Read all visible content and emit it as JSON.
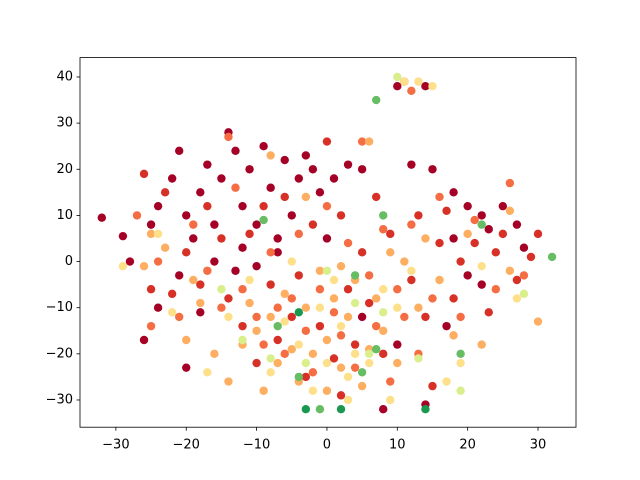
{
  "chart_data": {
    "type": "scatter",
    "xlim": [
      -35.1,
      35.4
    ],
    "ylim": [
      -35.9,
      44.2
    ],
    "xticks": [
      {
        "value": -30,
        "label": "−30"
      },
      {
        "value": -20,
        "label": "−20"
      },
      {
        "value": -10,
        "label": "−10"
      },
      0,
      10,
      20,
      30
    ],
    "yticks": [
      {
        "value": -30,
        "label": "−30"
      },
      {
        "value": -20,
        "label": "−20"
      },
      {
        "value": -10,
        "label": "−10"
      },
      0,
      10,
      20,
      30,
      40
    ],
    "grid": false,
    "series": [
      {
        "color": "#a50026",
        "x": [
          -32,
          -29,
          -26,
          -25,
          -24,
          -22,
          -21,
          -20,
          -19,
          -18,
          -17,
          -16,
          -15,
          -14,
          -13,
          -12,
          -12,
          -11,
          -10,
          -9,
          -8,
          -7,
          -6,
          -5,
          -4,
          -3,
          -2,
          -1,
          1,
          3,
          5,
          10,
          12,
          14,
          15,
          18,
          20,
          22,
          23,
          25,
          27,
          28,
          20,
          18,
          8,
          14,
          -24,
          -20,
          -18,
          -13,
          -10,
          -7,
          -16,
          5,
          10,
          17,
          22,
          -28,
          -21,
          0
        ],
        "values": [
          9.5,
          5.5,
          -17,
          8,
          12,
          18,
          24,
          10,
          5,
          15,
          21,
          8,
          18,
          28,
          24,
          12,
          3,
          20,
          8,
          25,
          16,
          2,
          22,
          10,
          18,
          23,
          20,
          15,
          18,
          21,
          20,
          38,
          21,
          38,
          20,
          15,
          12,
          10,
          7,
          12,
          8,
          3,
          -3,
          5,
          -32,
          -31,
          -10,
          -23,
          -11,
          -2,
          -1,
          5,
          0,
          -12,
          -18,
          -14,
          -5,
          0,
          -3,
          5
        ]
      },
      {
        "color": "#d73027",
        "x": [
          -26,
          -23,
          -22,
          -20,
          -18,
          -17,
          -15,
          -14,
          -12,
          -11,
          -10,
          -9,
          -8,
          -7,
          -6,
          -5,
          -4,
          -3,
          -2,
          -1,
          0,
          1,
          2,
          3,
          4,
          5,
          6,
          7,
          8,
          9,
          11,
          12,
          13,
          14,
          15,
          16,
          17,
          18,
          19,
          21,
          23,
          24,
          25,
          27,
          29,
          30,
          -25,
          2
        ],
        "values": [
          19,
          15,
          -7,
          2,
          -5,
          12,
          5,
          -8,
          -14,
          6,
          -22,
          12,
          -5,
          -17,
          14,
          -12,
          -3,
          -25,
          8,
          -14,
          26,
          -21,
          10,
          -6,
          -18,
          2,
          -9,
          14,
          -20,
          6,
          39,
          -4,
          10,
          -12,
          -27,
          4,
          11,
          -8,
          0,
          4,
          -11,
          2,
          6,
          -4,
          1,
          6,
          -6,
          -29
        ]
      },
      {
        "color": "#f46d43",
        "x": [
          -27,
          -24,
          -21,
          -19,
          -17,
          -15,
          -13,
          -12,
          -10,
          -9,
          -8,
          -7,
          -6,
          -5,
          -4,
          -3,
          -2,
          -1,
          0,
          1,
          2,
          3,
          4,
          6,
          7,
          8,
          9,
          10,
          11,
          12,
          13,
          15,
          16,
          19,
          21,
          24,
          26,
          28,
          -25,
          5,
          -14,
          12
        ],
        "values": [
          10,
          0,
          -12,
          8,
          -2,
          -10,
          16,
          -6,
          -12,
          -18,
          2,
          -10,
          -20,
          -8,
          6,
          -15,
          -24,
          -6,
          12,
          -11,
          -16,
          4,
          -23,
          -3,
          -14,
          7,
          -26,
          -6,
          -12,
          8,
          -20,
          -8,
          14,
          -12,
          9,
          -6,
          17,
          -3,
          -14,
          26,
          27,
          37
        ]
      },
      {
        "color": "#fdae61",
        "x": [
          -26,
          -23,
          -20,
          -18,
          -16,
          -14,
          -12,
          -11,
          -10,
          -9,
          -8,
          -7,
          -6,
          -5,
          -4,
          -3,
          -2,
          -1,
          0,
          0,
          1,
          2,
          3,
          4,
          5,
          6,
          7,
          8,
          9,
          10,
          11,
          13,
          14,
          16,
          18,
          20,
          22,
          26,
          30,
          -25,
          -19,
          -3,
          2,
          6,
          -8,
          26
        ],
        "values": [
          -1,
          3,
          -17,
          -9,
          -20,
          -26,
          -18,
          -9,
          -15,
          -28,
          -12,
          -22,
          -7,
          -19,
          -26,
          -10,
          -20,
          -2,
          -17,
          -28,
          -8,
          -23,
          -12,
          -4,
          -27,
          -19,
          -8,
          -15,
          2,
          -22,
          0,
          -10,
          5,
          -4,
          -16,
          6,
          -18,
          -2,
          -13,
          6,
          -4,
          14,
          -1,
          26,
          23,
          11
        ]
      },
      {
        "color": "#fee08b",
        "x": [
          -29,
          -22,
          -17,
          -14,
          -11,
          -8,
          -6,
          -4,
          -2,
          -1,
          0,
          1,
          2,
          3,
          4,
          6,
          8,
          9,
          10,
          11,
          13,
          15,
          17,
          19,
          22,
          27,
          -5,
          3,
          12,
          -24
        ],
        "values": [
          -1,
          -11,
          -24,
          -12,
          -4,
          -24,
          -13,
          -18,
          -28,
          -10,
          -22,
          -4,
          -14,
          -30,
          -20,
          -22,
          -6,
          -30,
          -10,
          39,
          39,
          38,
          -26,
          -22,
          -1,
          -8,
          0,
          -25,
          -2,
          6
        ]
      },
      {
        "color": "#d9ef8b",
        "x": [
          -12,
          -8,
          -3,
          0,
          4,
          8,
          10,
          13,
          19,
          28,
          -15,
          6
        ],
        "values": [
          -17,
          -21,
          -22,
          -2,
          -9,
          -11,
          40,
          -21,
          -28,
          -7,
          -6,
          -20
        ]
      },
      {
        "color": "#66bd63",
        "x": [
          -4,
          4,
          5,
          7,
          7,
          8,
          19,
          22,
          32,
          -7,
          -1,
          -9
        ],
        "values": [
          -25,
          -3,
          -24,
          -19,
          35,
          10,
          -20,
          8,
          1,
          -14,
          -32,
          9
        ]
      },
      {
        "color": "#1a9850",
        "x": [
          -3,
          -4,
          14,
          2
        ],
        "values": [
          -32,
          -11,
          -32,
          -32
        ]
      }
    ]
  }
}
